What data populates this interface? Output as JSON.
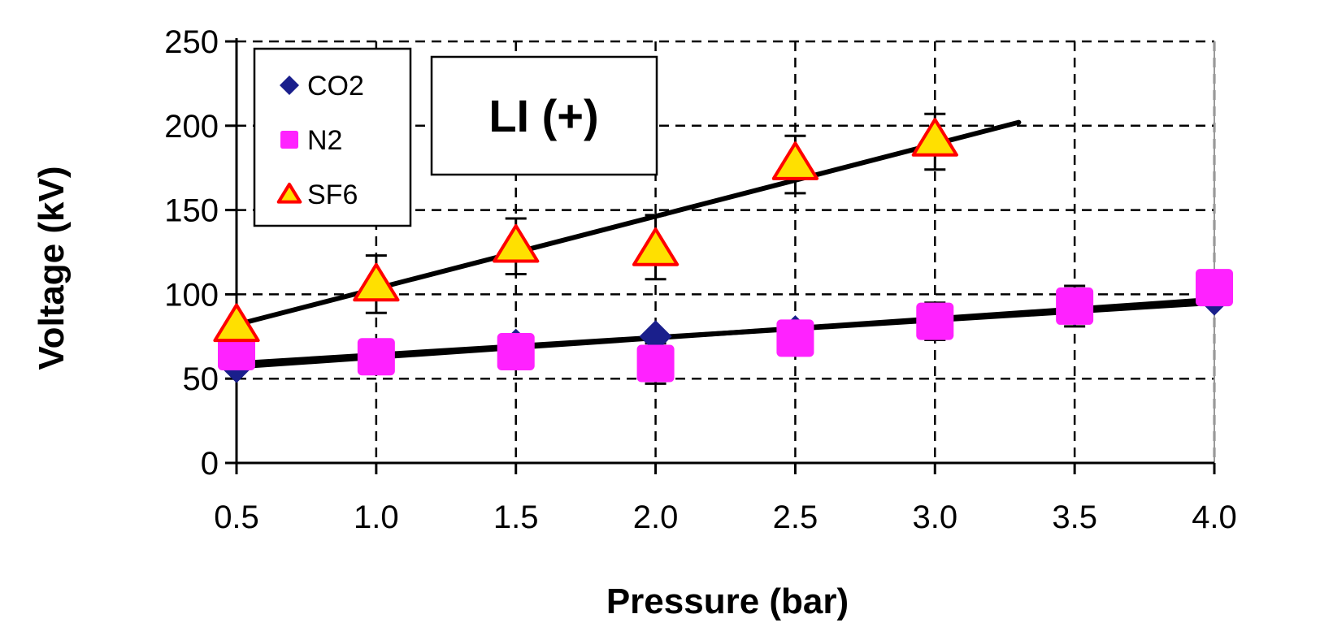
{
  "chart_data": {
    "type": "scatter",
    "annotation": "LI (+)",
    "xlabel": "Pressure (bar)",
    "ylabel": "Voltage (kV)",
    "xlim": [
      0.5,
      4.0
    ],
    "ylim": [
      0,
      250
    ],
    "xticks": [
      "0.5",
      "1.0",
      "1.5",
      "2.0",
      "2.5",
      "3.0",
      "3.5",
      "4.0"
    ],
    "xtick_values": [
      0.5,
      1.0,
      1.5,
      2.0,
      2.5,
      3.0,
      3.5,
      4.0
    ],
    "yticks": [
      "0",
      "50",
      "100",
      "150",
      "200",
      "250"
    ],
    "ytick_values": [
      0,
      50,
      100,
      150,
      200,
      250
    ],
    "grid": true,
    "legend_position": "top-left",
    "series": [
      {
        "name": "CO2",
        "marker": "diamond",
        "color": "#1a1f8c",
        "x": [
          0.5,
          1.0,
          1.5,
          2.0,
          2.5,
          3.0,
          3.5,
          4.0
        ],
        "y": [
          57,
          64,
          70,
          75,
          78,
          84,
          91,
          97
        ]
      },
      {
        "name": "N2",
        "marker": "square",
        "color": "#ff22ff",
        "x": [
          0.5,
          1.0,
          1.5,
          2.0,
          2.5,
          3.0,
          3.5,
          4.0
        ],
        "y": [
          66,
          63,
          66,
          59,
          74,
          84,
          93,
          104
        ],
        "err_low": [
          11,
          10,
          10,
          12,
          10,
          11,
          12,
          10
        ],
        "err_high": [
          11,
          10,
          10,
          12,
          10,
          11,
          12,
          10
        ]
      },
      {
        "name": "SF6",
        "marker": "triangle",
        "color": "#ffe000",
        "edge_color": "#ff0000",
        "x": [
          0.5,
          1.0,
          1.5,
          2.0,
          2.5,
          3.0
        ],
        "y": [
          82,
          106,
          129,
          127,
          178,
          192
        ],
        "err_low": [
          0,
          17,
          17,
          18,
          18,
          18
        ],
        "err_high": [
          0,
          17,
          16,
          20,
          16,
          15
        ]
      }
    ],
    "trendlines": [
      {
        "name": "SF6 fit",
        "x": [
          0.5,
          3.3
        ],
        "y": [
          82,
          202
        ],
        "stroke_width": 6
      },
      {
        "name": "CO2 fit",
        "x": [
          0.5,
          4.0
        ],
        "y": [
          57,
          97
        ],
        "stroke_width": 6
      },
      {
        "name": "N2 fit",
        "x": [
          0.5,
          4.0
        ],
        "y": [
          59,
          95
        ],
        "stroke_width": 6
      }
    ]
  }
}
